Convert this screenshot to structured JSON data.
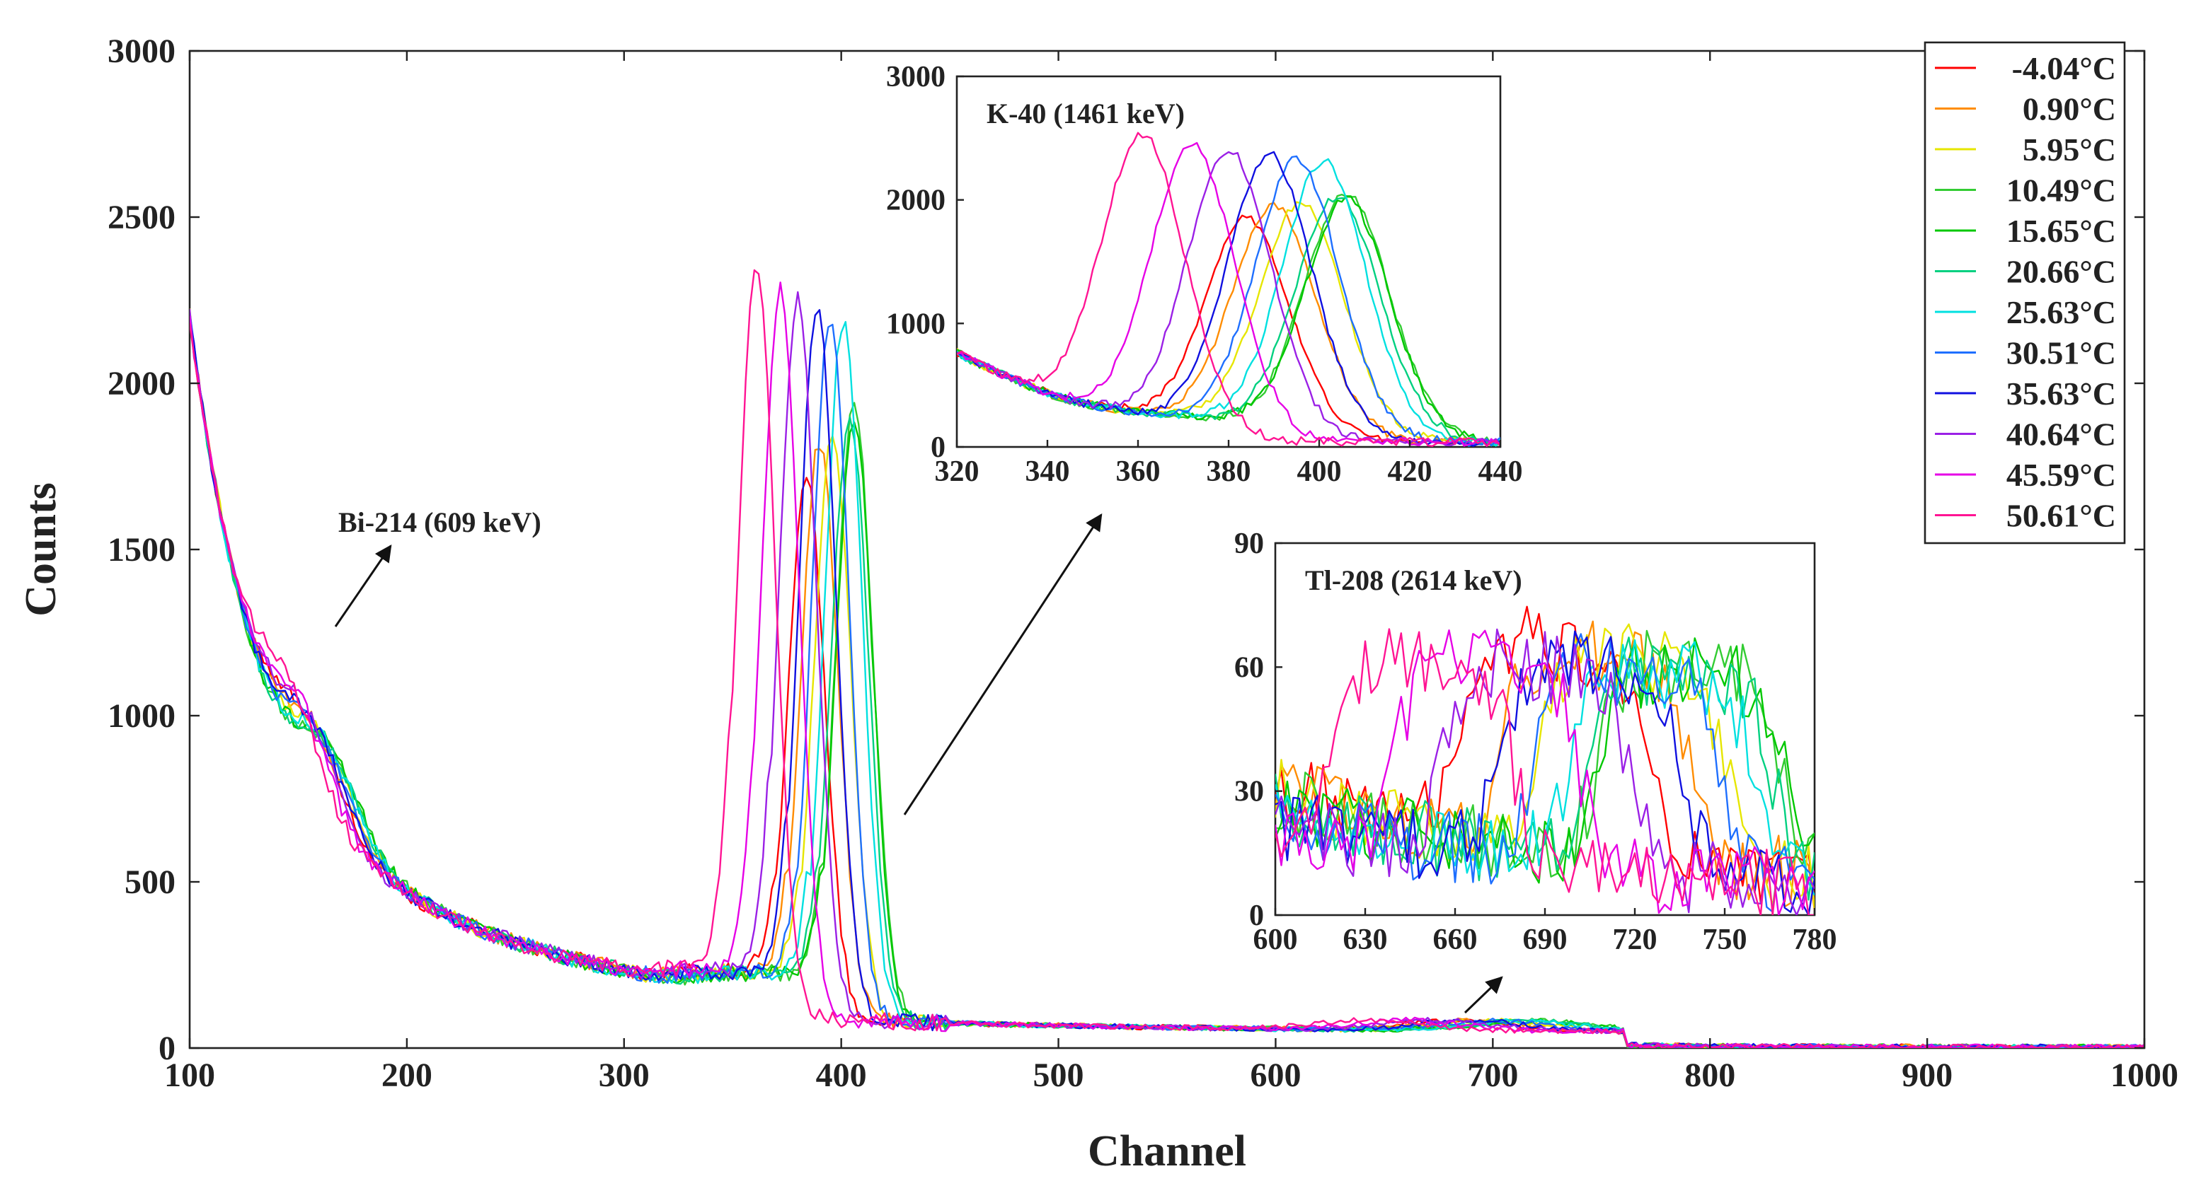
{
  "chart_data": [
    {
      "type": "line",
      "xlabel": "Channel",
      "ylabel": "Counts",
      "xlim": [
        100,
        1000
      ],
      "ylim": [
        0,
        3000
      ],
      "xticks": [
        100,
        200,
        300,
        400,
        500,
        600,
        700,
        800,
        900,
        1000
      ],
      "yticks": [
        0,
        500,
        1000,
        1500,
        2000,
        2500,
        3000
      ],
      "grid": false,
      "legend_position": "top-right",
      "annotations": [
        {
          "text": "Bi-214 (609 keV)",
          "target_x": 163,
          "target_y": 1250
        }
      ],
      "series": [
        {
          "name": "-4.04°C",
          "color": "#ff0000",
          "peak_channel": 384,
          "peak_counts": 1620
        },
        {
          "name": "0.90°C",
          "color": "#ff8c00",
          "peak_channel": 390,
          "peak_counts": 1740
        },
        {
          "name": "5.95°C",
          "color": "#e6e600",
          "peak_channel": 396,
          "peak_counts": 1760
        },
        {
          "name": "10.49°C",
          "color": "#33cc33",
          "peak_channel": 406,
          "peak_counts": 1850
        },
        {
          "name": "15.65°C",
          "color": "#00c800",
          "peak_channel": 406,
          "peak_counts": 1800
        },
        {
          "name": "20.66°C",
          "color": "#00d080",
          "peak_channel": 404,
          "peak_counts": 1820
        },
        {
          "name": "25.63°C",
          "color": "#00e0e0",
          "peak_channel": 401,
          "peak_counts": 2100
        },
        {
          "name": "30.51°C",
          "color": "#1e6fff",
          "peak_channel": 395,
          "peak_counts": 2110
        },
        {
          "name": "35.63°C",
          "color": "#1010e0",
          "peak_channel": 389,
          "peak_counts": 2150
        },
        {
          "name": "40.64°C",
          "color": "#9b20e6",
          "peak_channel": 380,
          "peak_counts": 2170
        },
        {
          "name": "45.59°C",
          "color": "#e600e6",
          "peak_channel": 372,
          "peak_counts": 2200
        },
        {
          "name": "50.61°C",
          "color": "#ff1493",
          "peak_channel": 361,
          "peak_counts": 2250
        }
      ]
    },
    {
      "type": "line",
      "title": "K-40 (1461 keV)",
      "xlim": [
        320,
        440
      ],
      "ylim": [
        0,
        3000
      ],
      "xticks": [
        320,
        340,
        360,
        380,
        400,
        420,
        440
      ],
      "yticks": [
        0,
        1000,
        2000,
        3000
      ],
      "grid": false
    },
    {
      "type": "line",
      "title": "Tl-208 (2614 keV)",
      "xlim": [
        600,
        780
      ],
      "ylim": [
        0,
        90
      ],
      "xticks": [
        600,
        630,
        660,
        690,
        720,
        750,
        780
      ],
      "yticks": [
        0,
        30,
        60,
        90
      ],
      "grid": false
    }
  ]
}
